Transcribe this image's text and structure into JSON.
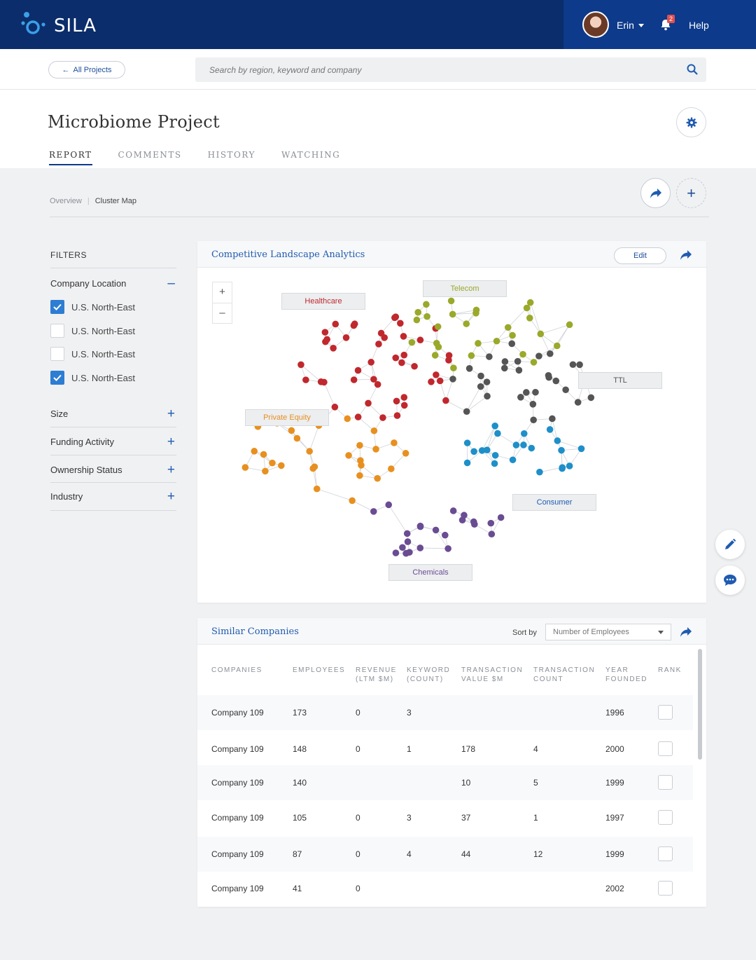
{
  "header": {
    "brand": "SILA",
    "user_name": "Erin",
    "notification_count": "2",
    "help_label": "Help"
  },
  "nav": {
    "back_label": "All Projects",
    "search_placeholder": "Search by region, keyword and company"
  },
  "page": {
    "title": "Microbiome Project",
    "tabs": [
      "REPORT",
      "COMMENTS",
      "HISTORY",
      "WATCHING"
    ],
    "active_tab": "REPORT"
  },
  "breadcrumb": {
    "items": [
      "Overview",
      "Cluster Map"
    ]
  },
  "filters": {
    "title": "FILTERS",
    "company_location": {
      "label": "Company Location",
      "options": [
        {
          "label": "U.S. North-East",
          "checked": true
        },
        {
          "label": "U.S. North-East",
          "checked": false
        },
        {
          "label": "U.S. North-East",
          "checked": false
        },
        {
          "label": "U.S. North-East",
          "checked": true
        }
      ]
    },
    "groups": [
      "Size",
      "Funding Activity",
      "Ownership Status",
      "Industry"
    ]
  },
  "analytics": {
    "title": "Competitive Landscape Analytics",
    "edit_label": "Edit",
    "clusters": [
      {
        "name": "Healthcare",
        "color": "#c0282d"
      },
      {
        "name": "Telecom",
        "color": "#9aa92a"
      },
      {
        "name": "TTL",
        "color": "#555555"
      },
      {
        "name": "Private Equity",
        "color": "#e8901f"
      },
      {
        "name": "Consumer",
        "color": "#1e8fc9"
      },
      {
        "name": "Chemicals",
        "color": "#6a4c93"
      }
    ]
  },
  "similar": {
    "title": "Similar Companies",
    "sort_label": "Sort by",
    "sort_value": "Number of Employees",
    "columns": [
      [
        "COMPANIES"
      ],
      [
        "EMPLOYEES"
      ],
      [
        "REVENUE",
        "(LTM $M)"
      ],
      [
        "KEYWORD",
        "(COUNT)"
      ],
      [
        "TRANSACTION",
        "VALUE $M"
      ],
      [
        "TRANSACTION",
        "COUNT"
      ],
      [
        "YEAR",
        "FOUNDED"
      ],
      [
        "RANK"
      ]
    ],
    "rows": [
      [
        "Company 109",
        "173",
        "0",
        "3",
        "",
        "",
        "1996"
      ],
      [
        "Company 109",
        "148",
        "0",
        "1",
        "178",
        "4",
        "2000"
      ],
      [
        "Company 109",
        "140",
        "",
        "",
        "10",
        "5",
        "1999"
      ],
      [
        "Company 109",
        "105",
        "0",
        "3",
        "37",
        "1",
        "1997"
      ],
      [
        "Company 109",
        "87",
        "0",
        "4",
        "44",
        "12",
        "1999"
      ],
      [
        "Company 109",
        "41",
        "0",
        "",
        "",
        "",
        "2002"
      ]
    ]
  }
}
